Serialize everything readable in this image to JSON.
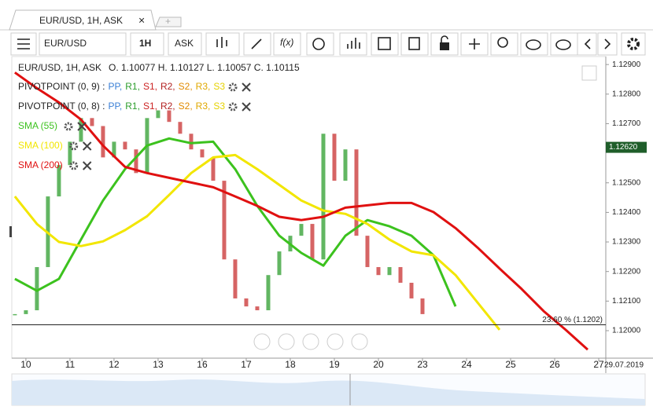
{
  "tab": {
    "label": "EUR/USD, 1H, ASK"
  },
  "toolbar": {
    "instrument": "EUR/USD",
    "period": "1H",
    "side": "ASK",
    "indicators": "f(x)"
  },
  "legend": {
    "instrument": "EUR/USD, 1H, ASK",
    "ohlc": "O. 1.10077 H. 1.10127 L. 1.10057 C. 1.10115",
    "pivots": [
      {
        "label": "PIVOTPOINT (0, 9) :"
      },
      {
        "label": "PIVOTPOINT (0, 8) :"
      }
    ],
    "pivot_items": [
      {
        "text": "PP,",
        "color": "#3a7fd5"
      },
      {
        "text": "R1,",
        "color": "#2e9e2e"
      },
      {
        "text": "S1,",
        "color": "#cc2222"
      },
      {
        "text": "R2,",
        "color": "#b22222"
      },
      {
        "text": "S2,",
        "color": "#e08a00"
      },
      {
        "text": "R3,",
        "color": "#e0a800"
      },
      {
        "text": "S3",
        "color": "#e6d200"
      }
    ]
  },
  "chart_data": {
    "type": "line",
    "x": [
      -0.25,
      0.25,
      0.75,
      1.25,
      1.75,
      2.25,
      2.75,
      3.25,
      3.75,
      4.25,
      4.75,
      5.25,
      5.75,
      6.25,
      6.75,
      7.25,
      7.75,
      8.25,
      8.75,
      9.25,
      9.75,
      10.25,
      10.75,
      11.25,
      11.75,
      12.25,
      12.75
    ],
    "series": [
      {
        "name": "SMA (55)",
        "color": "#3cc21e",
        "values": [
          1.12175,
          1.12135,
          1.12175,
          1.12308,
          1.1244,
          1.12546,
          1.12626,
          1.1265,
          1.12634,
          1.12639,
          1.12546,
          1.12422,
          1.12321,
          1.12263,
          1.1222,
          1.12321,
          1.12374,
          1.12353,
          1.12321,
          1.12255,
          1.12082,
          null,
          null,
          null,
          null,
          null,
          null
        ]
      },
      {
        "name": "SMA (100)",
        "color": "#f2e600",
        "values": [
          1.12454,
          1.12361,
          1.123,
          1.12286,
          1.12302,
          1.1234,
          1.12387,
          1.12459,
          1.12533,
          1.12586,
          1.12594,
          1.12546,
          1.12493,
          1.1244,
          1.12406,
          1.12395,
          1.12361,
          1.12308,
          1.12268,
          1.12255,
          1.12188,
          1.12095,
          1.12003,
          null,
          null,
          null,
          null
        ]
      },
      {
        "name": "SMA (200)",
        "color": "#e01010",
        "values": [
          1.12873,
          1.1282,
          1.12772,
          1.12714,
          1.12626,
          1.12554,
          1.12533,
          1.12517,
          1.12501,
          1.12485,
          1.12454,
          1.12422,
          1.12385,
          1.12374,
          1.12385,
          1.12416,
          1.12424,
          1.12432,
          1.12432,
          1.12401,
          1.12347,
          1.12281,
          1.1221,
          1.12141,
          1.12066,
          1.12003,
          1.11936
        ]
      }
    ],
    "candles": {
      "x": [
        -0.25,
        0,
        0.25,
        0.5,
        0.75,
        1,
        1.25,
        1.5,
        1.75,
        2,
        2.25,
        2.5,
        2.75,
        3,
        3.25,
        3.5,
        3.75,
        4,
        4.25,
        4.5,
        4.75,
        5,
        5.25,
        5.5,
        5.75,
        6,
        6.25,
        6.5,
        6.75,
        7,
        7.25,
        7.5,
        7.75,
        8,
        8.25,
        8.5,
        8.75,
        9
      ],
      "close": [
        1.12056,
        1.12069,
        1.12215,
        1.12454,
        1.1256,
        1.12639,
        1.12719,
        1.12692,
        1.12586,
        1.12639,
        1.12613,
        1.12533,
        1.12719,
        1.12745,
        1.12706,
        1.12666,
        1.12613,
        1.12586,
        1.12507,
        1.12241,
        1.12109,
        1.12082,
        1.12069,
        1.12188,
        1.12268,
        1.12321,
        1.12361,
        1.12241,
        1.12666,
        1.12507,
        1.12613,
        1.12321,
        1.12215,
        1.12188,
        1.12215,
        1.12162,
        1.12109,
        1.12056
      ],
      "up_color": "#2e9e2e",
      "down_color": "#c83030"
    },
    "xlim": [
      -0.32,
      13.16
    ],
    "xticks": [
      {
        "value": 0,
        "label": "10"
      },
      {
        "value": 1,
        "label": "11"
      },
      {
        "value": 2,
        "label": "12"
      },
      {
        "value": 3,
        "label": "13"
      },
      {
        "value": 4,
        "label": "16"
      },
      {
        "value": 5,
        "label": "17"
      },
      {
        "value": 6,
        "label": "18"
      },
      {
        "value": 7,
        "label": "19"
      },
      {
        "value": 8,
        "label": "20"
      },
      {
        "value": 9,
        "label": "23"
      },
      {
        "value": 10,
        "label": "24"
      },
      {
        "value": 11,
        "label": "25"
      },
      {
        "value": 12,
        "label": "26"
      },
      {
        "value": 13,
        "label": "27"
      }
    ],
    "axis_date": "29.07.2019",
    "ylim": [
      1.11907,
      1.12927
    ],
    "yticks": [
      {
        "value": 1.129,
        "label": "1.12900"
      },
      {
        "value": 1.128,
        "label": "1.12800"
      },
      {
        "value": 1.127,
        "label": "1.12700"
      },
      {
        "value": 1.125,
        "label": "1.12500"
      },
      {
        "value": 1.124,
        "label": "1.12400"
      },
      {
        "value": 1.123,
        "label": "1.12300"
      },
      {
        "value": 1.122,
        "label": "1.12200"
      },
      {
        "value": 1.121,
        "label": "1.12100"
      },
      {
        "value": 1.12,
        "label": "1.12000"
      }
    ],
    "current_price": {
      "value": 1.1262,
      "label": "1.12620",
      "color": "#1f5e2a"
    },
    "annotations": [
      {
        "value": 1.1202,
        "label": "23.60 % (1.1202)"
      }
    ]
  }
}
